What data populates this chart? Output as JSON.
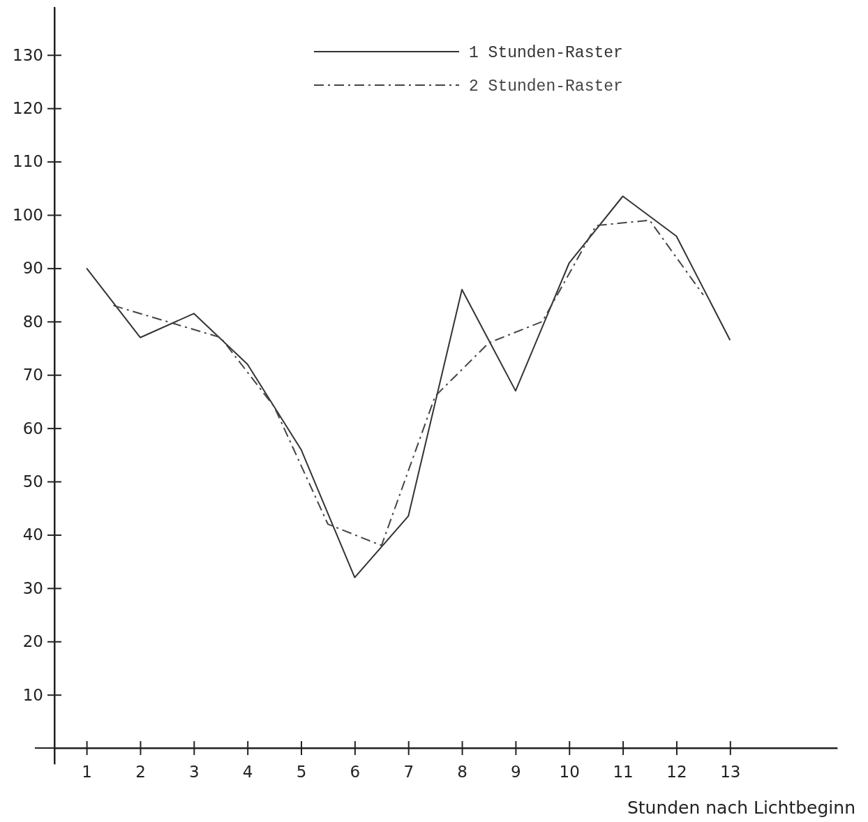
{
  "chart_data": {
    "type": "line",
    "xlabel": "Stunden nach Lichtbeginn",
    "xlim": [
      0.4,
      15
    ],
    "xticks": [
      1,
      2,
      3,
      4,
      5,
      6,
      7,
      8,
      9,
      10,
      11,
      12,
      13
    ],
    "ylim": [
      -3,
      139
    ],
    "yticks": [
      10,
      20,
      30,
      40,
      50,
      60,
      70,
      80,
      90,
      100,
      110,
      120,
      130
    ],
    "grid": false,
    "legend": "top",
    "marker": "none",
    "series": [
      {
        "name": "1 Stunden-Raster",
        "color": "#333333",
        "line_style": "solid",
        "x": [
          1,
          2,
          3,
          4,
          5,
          6,
          7,
          8,
          9,
          10,
          11,
          12,
          13
        ],
        "values": [
          90,
          77,
          81.5,
          72,
          56,
          32,
          43.5,
          86,
          67,
          91,
          103.5,
          96,
          76.5
        ]
      },
      {
        "name": "2 Stunden-Raster",
        "color": "#444444",
        "line_style": "dashdot",
        "x": [
          1.5,
          2.5,
          3.5,
          4.5,
          5.5,
          6.5,
          7.5,
          8.5,
          9.5,
          10.5,
          11.5,
          12.5
        ],
        "values": [
          83,
          80,
          77,
          64,
          42,
          38,
          66,
          76,
          80,
          98,
          99,
          85
        ]
      }
    ]
  }
}
